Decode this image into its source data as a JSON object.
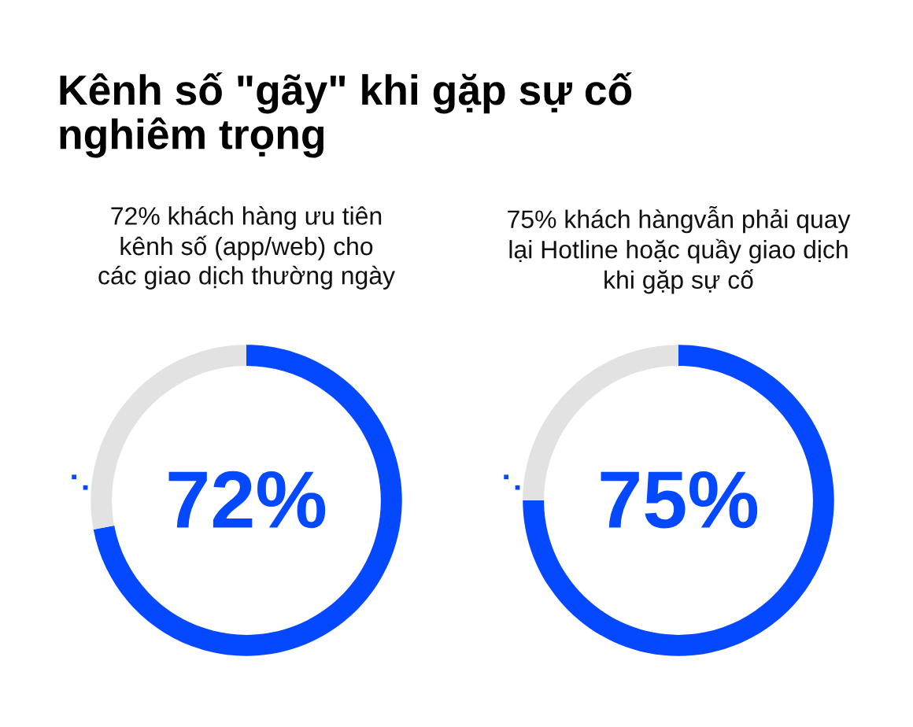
{
  "chart_data": [
    {
      "type": "donut",
      "title": "Kênh số \"gãy\" khi gặp sự cố\nnghiêm trọng",
      "subtitle": "72% khách hàng ưu tiên\nkênh số (app/web) cho\ncác giao dịch thường ngày",
      "categories": [
        null,
        null
      ],
      "values": [
        72,
        28
      ],
      "colors": [
        "#0448ff",
        "#e2e2e2"
      ],
      "value_labels": [
        "72%",
        null
      ]
    },
    {
      "type": "donut",
      "subtitle": "75% khách hàngvẫn phải quay\nlại Hotline hoặc quầy giao dịch\nkhi gặp sự cố",
      "categories": [
        null,
        null
      ],
      "values": [
        75,
        25
      ],
      "colors": [
        "#0448ff",
        "#e2e2e2"
      ],
      "value_labels": [
        "75%",
        null
      ]
    }
  ]
}
